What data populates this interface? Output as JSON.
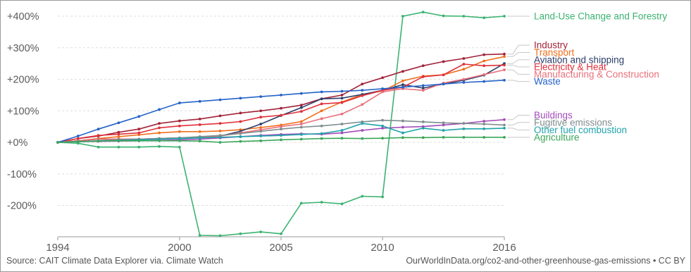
{
  "chart_data": {
    "type": "line",
    "xlim": [
      1994,
      2016
    ],
    "ylim": [
      -300,
      400
    ],
    "x_ticks": [
      "1994",
      "2000",
      "2005",
      "2010",
      "2016"
    ],
    "y_ticks": [
      {
        "value": 400,
        "label": "+400%"
      },
      {
        "value": 300,
        "label": "+300%"
      },
      {
        "value": 200,
        "label": "+200%"
      },
      {
        "value": 100,
        "label": "+100%"
      },
      {
        "value": 0,
        "label": "+0%"
      },
      {
        "value": -100,
        "label": "-100%"
      },
      {
        "value": -200,
        "label": "-200%"
      }
    ],
    "grid": true,
    "years": [
      1994,
      1995,
      1996,
      1997,
      1998,
      1999,
      2000,
      2001,
      2002,
      2003,
      2004,
      2005,
      2006,
      2007,
      2008,
      2009,
      2010,
      2011,
      2012,
      2013,
      2014,
      2015,
      2016
    ],
    "series": [
      {
        "name": "Land-Use Change and Forestry",
        "color": "#3cb371",
        "label_value": 400,
        "values": [
          0,
          -3,
          -15,
          -15,
          -15,
          -13,
          -15,
          -295,
          -296,
          -290,
          -284,
          -290,
          -193,
          -190,
          -195,
          -171,
          -173,
          400,
          413,
          401,
          400,
          395,
          400
        ]
      },
      {
        "name": "Industry",
        "color": "#a3233a",
        "label_value": 308,
        "values": [
          0,
          12,
          20,
          32,
          42,
          60,
          68,
          74,
          84,
          93,
          100,
          108,
          118,
          138,
          150,
          185,
          205,
          225,
          243,
          256,
          266,
          278,
          280
        ]
      },
      {
        "name": "Transport",
        "color": "#f0701e",
        "label_value": 285,
        "values": [
          0,
          5,
          12,
          18,
          24,
          30,
          34,
          34,
          36,
          40,
          47,
          55,
          66,
          100,
          128,
          152,
          163,
          195,
          210,
          214,
          232,
          258,
          272
        ]
      },
      {
        "name": "Aviation and shipping",
        "color": "#2c3e6b",
        "label_value": 262,
        "values": [
          0,
          5,
          10,
          10,
          10,
          12,
          14,
          15,
          20,
          35,
          58,
          85,
          110,
          138,
          140,
          152,
          165,
          183,
          172,
          185,
          197,
          213,
          250
        ]
      },
      {
        "name": "Electricity & Heat",
        "color": "#e0303a",
        "label_value": 239,
        "values": [
          0,
          12,
          22,
          26,
          30,
          46,
          52,
          56,
          60,
          66,
          80,
          86,
          98,
          122,
          126,
          148,
          165,
          175,
          208,
          214,
          248,
          243,
          245
        ]
      },
      {
        "name": "Manufacturing & Construction",
        "color": "#e8707a",
        "label_value": 216,
        "values": [
          0,
          5,
          10,
          10,
          10,
          12,
          14,
          15,
          20,
          30,
          40,
          50,
          58,
          75,
          90,
          120,
          160,
          170,
          165,
          188,
          200,
          215,
          230
        ]
      },
      {
        "name": "Waste",
        "color": "#2563c8",
        "label_value": 193,
        "values": [
          0,
          20,
          42,
          62,
          82,
          104,
          125,
          130,
          135,
          140,
          145,
          150,
          155,
          160,
          162,
          165,
          170,
          175,
          180,
          185,
          190,
          193,
          197
        ]
      },
      {
        "name": "Buildings",
        "color": "#a24cb8",
        "label_value": 86,
        "values": [
          0,
          2,
          3,
          4,
          5,
          6,
          8,
          10,
          14,
          18,
          22,
          25,
          27,
          26,
          30,
          38,
          45,
          48,
          50,
          55,
          60,
          67,
          72
        ]
      },
      {
        "name": "Fugitive emissions",
        "color": "#7f8c8d",
        "label_value": 63,
        "values": [
          0,
          3,
          5,
          8,
          10,
          12,
          14,
          18,
          22,
          28,
          35,
          42,
          48,
          52,
          58,
          65,
          70,
          68,
          65,
          62,
          60,
          58,
          55
        ]
      },
      {
        "name": "Other fuel combustion",
        "color": "#1fa3aa",
        "label_value": 39,
        "values": [
          0,
          2,
          4,
          6,
          8,
          10,
          12,
          14,
          16,
          18,
          20,
          22,
          25,
          28,
          38,
          60,
          52,
          30,
          45,
          38,
          43,
          43,
          45
        ]
      },
      {
        "name": "Agriculture",
        "color": "#3aa65a",
        "label_value": 16,
        "values": [
          0,
          2,
          4,
          5,
          5,
          5,
          5,
          4,
          0,
          3,
          5,
          8,
          10,
          12,
          13,
          12,
          13,
          15,
          15,
          16,
          16,
          16,
          16
        ]
      }
    ]
  },
  "source_left": "Source: CAIT Climate Data Explorer via. Climate Watch",
  "source_right": "OurWorldInData.org/co2-and-other-greenhouse-gas-emissions • CC BY"
}
